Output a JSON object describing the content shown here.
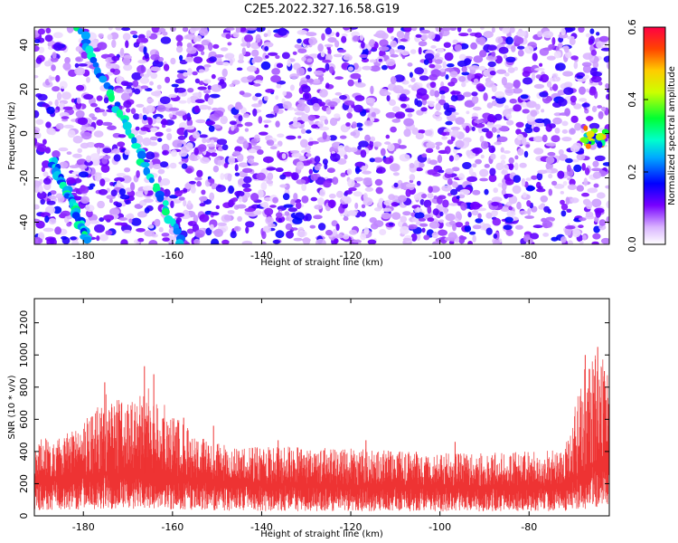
{
  "title": "C2E5.2022.327.16.58.G19",
  "chart_data": [
    {
      "type": "heatmap",
      "xlabel": "Height of straight line (km)",
      "ylabel": "Frequency (Hz)",
      "xlim": [
        -191,
        -62
      ],
      "ylim": [
        -50,
        48
      ],
      "x_ticks": [
        -180,
        -160,
        -140,
        -120,
        -100,
        -80
      ],
      "y_ticks": [
        -40,
        -20,
        0,
        20,
        40
      ],
      "colorbar": {
        "label": "Normalized spectral amplitude",
        "range": [
          0.0,
          0.6
        ],
        "ticks": [
          "0.0",
          "0.2",
          "0.4",
          "0.6"
        ]
      },
      "features": [
        {
          "description": "diagonal high-amplitude streak",
          "from": [
            -181,
            48
          ],
          "to": [
            -158,
            -49
          ],
          "amplitude": 0.3
        },
        {
          "description": "lower-left diagonal streak",
          "from": [
            -187,
            -12
          ],
          "to": [
            -179,
            -48
          ],
          "amplitude": 0.3
        },
        {
          "description": "right-edge hot spot",
          "x": [
            -68,
            -62
          ],
          "y": [
            -6,
            3
          ],
          "amplitude": 0.55
        }
      ]
    },
    {
      "type": "line",
      "xlabel": "Height of straight line (km)",
      "ylabel": "SNR (10 * v/v)",
      "xlim": [
        -191,
        -62
      ],
      "ylim": [
        0,
        1350
      ],
      "x_ticks": [
        -180,
        -160,
        -140,
        -120,
        -100,
        -80
      ],
      "y_ticks": [
        0,
        200,
        400,
        600,
        800,
        1000,
        1200
      ],
      "series": [
        {
          "color": "#ee3333",
          "envelope": {
            "x": [
              -191,
              -185,
              -180,
              -175,
              -170,
              -165,
              -160,
              -155,
              -150,
              -145,
              -140,
              -130,
              -120,
              -110,
              -100,
              -90,
              -80,
              -72,
              -68,
              -65,
              -62
            ],
            "base": [
              230,
              235,
              240,
              255,
              260,
              265,
              245,
              230,
              220,
              210,
              200,
              195,
              190,
              190,
              185,
              185,
              185,
              190,
              260,
              330,
              360
            ],
            "peak": [
              480,
              490,
              580,
              760,
              700,
              820,
              640,
              500,
              450,
              420,
              430,
              430,
              420,
              410,
              390,
              390,
              400,
              420,
              900,
              1020,
              950
            ]
          },
          "spikes": [
            {
              "x": -175.2,
              "y": 830
            },
            {
              "x": -166.3,
              "y": 930
            },
            {
              "x": -164.2,
              "y": 880
            },
            {
              "x": -157.5,
              "y": 610
            },
            {
              "x": -150.8,
              "y": 560
            },
            {
              "x": -136.3,
              "y": 470
            },
            {
              "x": -116.6,
              "y": 470
            },
            {
              "x": -96.6,
              "y": 460
            },
            {
              "x": -67.4,
              "y": 1000
            },
            {
              "x": -64.6,
              "y": 1050
            },
            {
              "x": -63.1,
              "y": 900
            }
          ]
        }
      ]
    }
  ]
}
